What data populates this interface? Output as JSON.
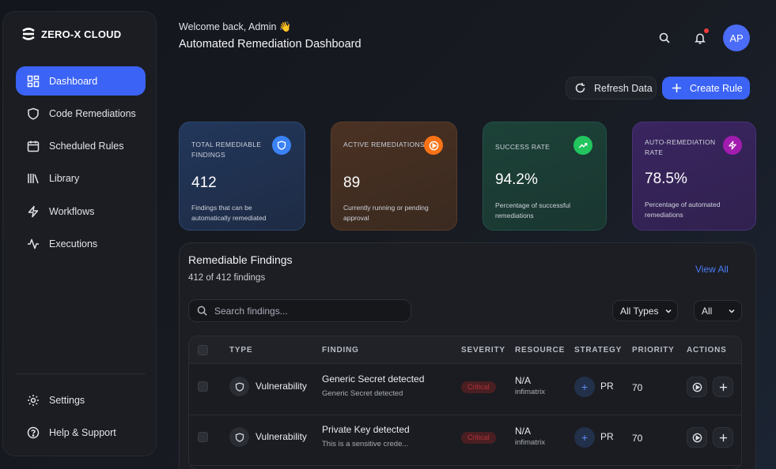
{
  "app": {
    "name": "ZERO-X CLOUD"
  },
  "sidebar": {
    "items": [
      {
        "label": "Dashboard",
        "icon": "dashboard-icon",
        "active": true
      },
      {
        "label": "Code Remediations",
        "icon": "shield-icon"
      },
      {
        "label": "Scheduled Rules",
        "icon": "calendar-icon"
      },
      {
        "label": "Library",
        "icon": "library-icon"
      },
      {
        "label": "Workflows",
        "icon": "bolt-icon"
      },
      {
        "label": "Executions",
        "icon": "activity-icon"
      }
    ],
    "bottom": [
      {
        "label": "Settings",
        "icon": "gear-icon"
      },
      {
        "label": "Help & Support",
        "icon": "help-icon"
      }
    ]
  },
  "header": {
    "welcome": "Welcome back, Admin 👋",
    "title": "Automated Remediation Dashboard",
    "avatar": "AP"
  },
  "actions": {
    "refresh": "Refresh Data",
    "create": "Create Rule"
  },
  "cards": [
    {
      "label": "TOTAL REMEDIABLE FINDINGS",
      "value": "412",
      "sub": "Findings that can be automatically remediated",
      "icon": "shield-icon",
      "color": "#3b82f6"
    },
    {
      "label": "ACTIVE REMEDIATIONS",
      "value": "89",
      "sub": "Currently running or pending approval",
      "icon": "play-icon",
      "color": "#f97316"
    },
    {
      "label": "SUCCESS RATE",
      "value": "94.2%",
      "sub": "Percentage of successful remediations",
      "icon": "trending-up-icon",
      "color": "#22c55e"
    },
    {
      "label": "AUTO-REMEDIATION RATE",
      "value": "78.5%",
      "sub": "Percentage of automated remediations",
      "icon": "bolt-icon",
      "color": "#a21caf"
    }
  ],
  "findings": {
    "title": "Remediable Findings",
    "count": "412 of 412 findings",
    "view_all": "View All",
    "search_placeholder": "Search findings...",
    "filter_type": "All Types",
    "filter_all": "All",
    "columns": [
      "TYPE",
      "FINDING",
      "SEVERITY",
      "RESOURCE",
      "STRATEGY",
      "PRIORITY",
      "ACTIONS"
    ],
    "rows": [
      {
        "type": "Vulnerability",
        "finding": "Generic Secret detected",
        "desc": "Generic Secret detected",
        "severity": "Critical",
        "resource": "N/A",
        "resource_sub": "infimatrix",
        "strategy": "PR",
        "priority": "70"
      },
      {
        "type": "Vulnerability",
        "finding": "Private Key detected",
        "desc": "This is a sensitive crede...",
        "severity": "Critical",
        "resource": "N/A",
        "resource_sub": "infimatrix",
        "strategy": "PR",
        "priority": "70"
      }
    ]
  }
}
